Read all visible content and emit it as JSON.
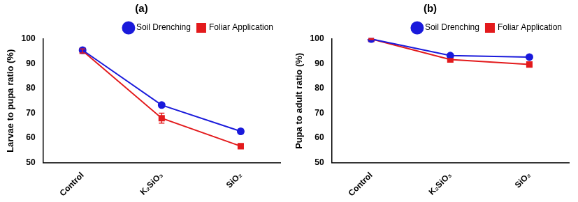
{
  "chart_data": [
    {
      "type": "line",
      "title": "(a)",
      "y_label": "Larvae to pupa ratio (%)",
      "categories": [
        "Control",
        "K₂SiO₃",
        "SiO₂"
      ],
      "series": [
        {
          "name": "Soil Drenching",
          "color": "#1a1adb",
          "marker": "circle",
          "values": [
            95.5,
            73.3,
            62.7
          ],
          "errors": [
            0.8,
            0.9,
            0.9
          ]
        },
        {
          "name": "Foliar Application",
          "color": "#e31a1c",
          "marker": "square",
          "values": [
            95.2,
            68.0,
            56.7
          ],
          "errors": [
            0.8,
            2.0,
            0.9
          ]
        }
      ],
      "ylim": [
        50,
        100
      ],
      "yticks": [
        50,
        60,
        70,
        80,
        90,
        100
      ],
      "grid": false,
      "legend": "top-right"
    },
    {
      "type": "line",
      "title": "(b)",
      "y_label": "Pupa to adult ratio (%)",
      "categories": [
        "Control",
        "K₂SiO₃",
        "SiO₂"
      ],
      "series": [
        {
          "name": "Soil Drenching",
          "color": "#1a1adb",
          "marker": "circle",
          "values": [
            100,
            93.3,
            92.7
          ],
          "errors": [
            0.2,
            0.4,
            0.4
          ]
        },
        {
          "name": "Foliar Application",
          "color": "#e31a1c",
          "marker": "square",
          "values": [
            100,
            91.7,
            89.7
          ],
          "errors": [
            0.2,
            0.4,
            0.4
          ]
        }
      ],
      "ylim": [
        50,
        100
      ],
      "yticks": [
        50,
        60,
        70,
        80,
        90,
        100
      ],
      "grid": false,
      "legend": "top-right"
    }
  ]
}
